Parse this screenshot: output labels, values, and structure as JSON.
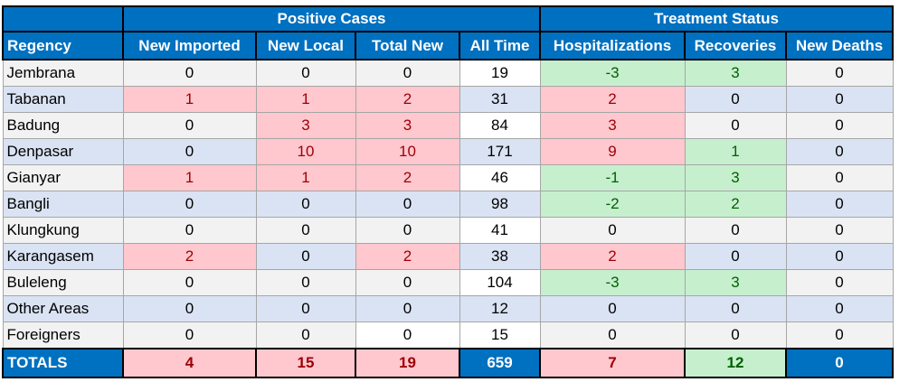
{
  "headers": {
    "group_positive": "Positive Cases",
    "group_treatment": "Treatment Status",
    "columns": [
      "Regency",
      "New Imported",
      "New Local",
      "Total New",
      "All Time",
      "Hospitalizations",
      "Recoveries",
      "New Deaths"
    ]
  },
  "rows": [
    {
      "name": "Jembrana",
      "values": [
        "0",
        "0",
        "0",
        "19",
        "-3",
        "3",
        "0"
      ],
      "status": [
        "",
        "",
        "",
        "white",
        "green",
        "green",
        ""
      ]
    },
    {
      "name": "Tabanan",
      "values": [
        "1",
        "1",
        "2",
        "31",
        "2",
        "0",
        "0"
      ],
      "status": [
        "red",
        "red",
        "red",
        "",
        "red",
        "",
        ""
      ]
    },
    {
      "name": "Badung",
      "values": [
        "0",
        "3",
        "3",
        "84",
        "3",
        "0",
        "0"
      ],
      "status": [
        "",
        "red",
        "red",
        "white",
        "red",
        "",
        ""
      ]
    },
    {
      "name": "Denpasar",
      "values": [
        "0",
        "10",
        "10",
        "171",
        "9",
        "1",
        "0"
      ],
      "status": [
        "",
        "red",
        "red",
        "",
        "red",
        "green",
        ""
      ]
    },
    {
      "name": "Gianyar",
      "values": [
        "1",
        "1",
        "2",
        "46",
        "-1",
        "3",
        "0"
      ],
      "status": [
        "red",
        "red",
        "red",
        "white",
        "green",
        "green",
        ""
      ]
    },
    {
      "name": "Bangli",
      "values": [
        "0",
        "0",
        "0",
        "98",
        "-2",
        "2",
        "0"
      ],
      "status": [
        "",
        "",
        "",
        "",
        "green",
        "green",
        ""
      ]
    },
    {
      "name": "Klungkung",
      "values": [
        "0",
        "0",
        "0",
        "41",
        "0",
        "0",
        "0"
      ],
      "status": [
        "",
        "",
        "",
        "white",
        "",
        "",
        ""
      ]
    },
    {
      "name": "Karangasem",
      "values": [
        "2",
        "0",
        "2",
        "38",
        "2",
        "0",
        "0"
      ],
      "status": [
        "red",
        "",
        "red",
        "",
        "red",
        "",
        ""
      ]
    },
    {
      "name": "Buleleng",
      "values": [
        "0",
        "0",
        "0",
        "104",
        "-3",
        "3",
        "0"
      ],
      "status": [
        "",
        "",
        "",
        "white",
        "green",
        "green",
        ""
      ]
    },
    {
      "name": "Other Areas",
      "values": [
        "0",
        "0",
        "0",
        "12",
        "0",
        "0",
        "0"
      ],
      "status": [
        "",
        "",
        "",
        "",
        "",
        "",
        ""
      ]
    },
    {
      "name": "Foreigners",
      "values": [
        "0",
        "0",
        "0",
        "15",
        "0",
        "0",
        "0"
      ],
      "status": [
        "",
        "",
        "white",
        "white",
        "",
        "",
        ""
      ]
    }
  ],
  "totals": {
    "label": "TOTALS",
    "values": [
      "4",
      "15",
      "19",
      "659",
      "7",
      "12",
      "0"
    ],
    "status": [
      "red",
      "red",
      "red",
      "blue",
      "red",
      "green",
      "blue"
    ]
  },
  "colors": {
    "header_blue": "#0070c0",
    "positive_fill": "#ffc7ce",
    "positive_text": "#9c0006",
    "negative_fill": "#c6efce",
    "negative_text": "#006100",
    "stripe_gray": "#f2f2f2",
    "stripe_blue": "#dae3f3"
  }
}
